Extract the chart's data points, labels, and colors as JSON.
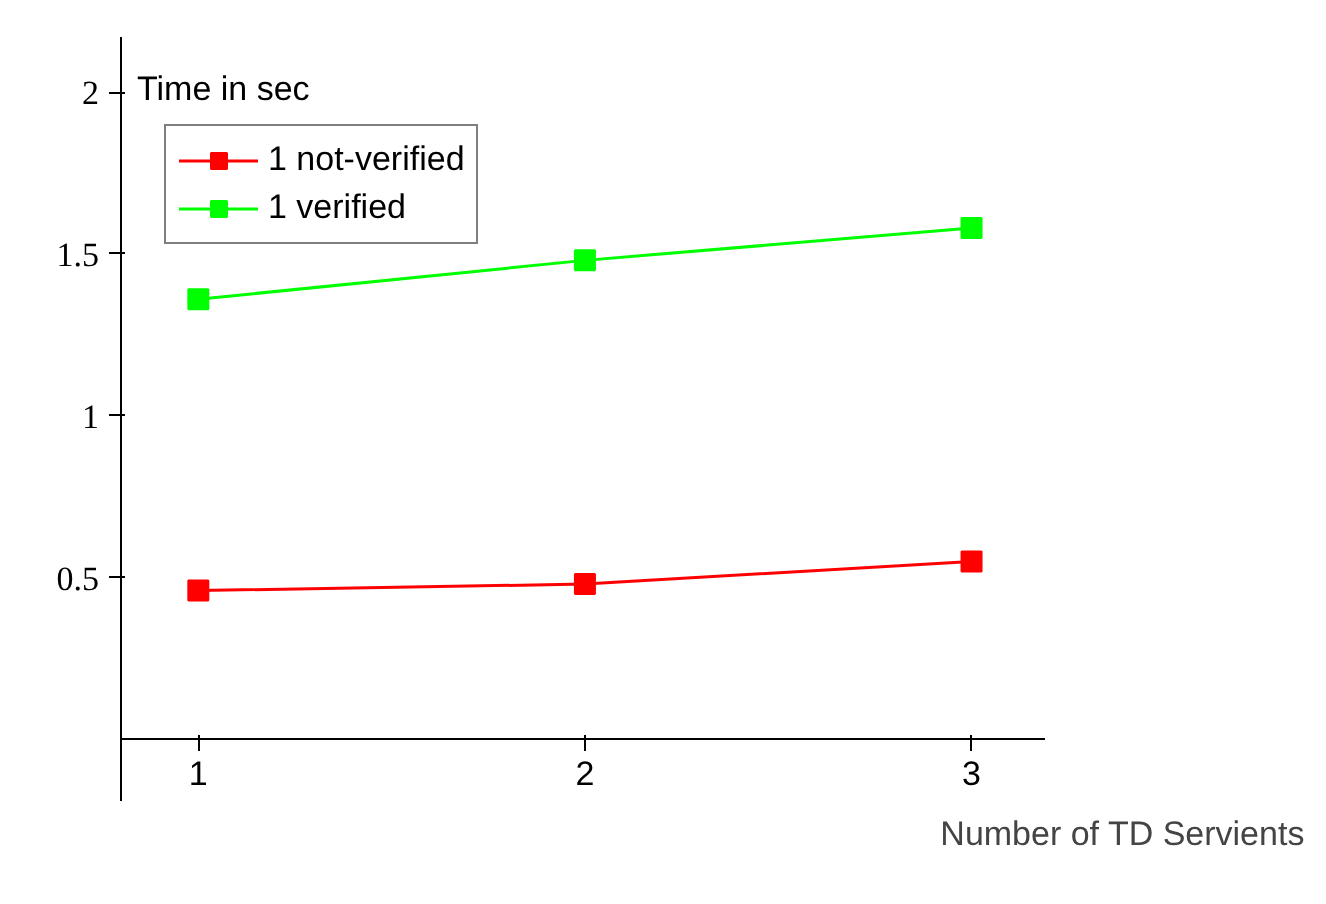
{
  "chart_data": {
    "type": "line",
    "xlabel": "Number of TD Servients",
    "ylabel": "Time in sec",
    "x": [
      1,
      2,
      3
    ],
    "series": [
      {
        "name": "1 not-verified",
        "color": "#ff0000",
        "values": [
          0.46,
          0.48,
          0.55
        ]
      },
      {
        "name": "1 verified",
        "color": "#00ff00",
        "values": [
          1.36,
          1.48,
          1.58
        ]
      }
    ],
    "xlim": [
      0.8,
      3.19
    ],
    "ylim": [
      -0.19,
      2.17
    ],
    "xticks": [
      1,
      2,
      3
    ],
    "yticks": [
      0.5,
      1,
      1.5,
      2
    ],
    "grid": false,
    "legend": "top left",
    "marker": "square",
    "line_style": "solid"
  }
}
